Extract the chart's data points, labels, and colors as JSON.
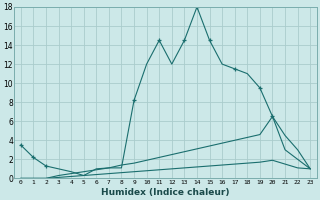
{
  "background_color": "#cce8e8",
  "line_color": "#1a6e6e",
  "grid_color": "#aacccc",
  "xlabel": "Humidex (Indice chaleur)",
  "xlim": [
    -0.5,
    23.5
  ],
  "ylim": [
    0,
    18
  ],
  "yticks": [
    0,
    2,
    4,
    6,
    8,
    10,
    12,
    14,
    16,
    18
  ],
  "xticks": [
    0,
    1,
    2,
    3,
    4,
    5,
    6,
    7,
    8,
    9,
    10,
    11,
    12,
    13,
    14,
    15,
    16,
    17,
    18,
    19,
    20,
    21,
    22,
    23
  ],
  "series": [
    {
      "x": [
        0,
        1,
        2,
        3,
        4,
        5,
        6,
        7,
        8,
        9,
        10,
        11,
        12,
        13,
        14,
        15,
        16,
        17,
        18,
        19,
        20,
        21,
        22,
        23
      ],
      "y": [
        3.5,
        2.2,
        1.3,
        1.0,
        0.7,
        0.3,
        1.0,
        1.1,
        1.1,
        8.2,
        12.0,
        14.5,
        12.0,
        14.5,
        18.0,
        14.5,
        12.0,
        11.5,
        11.0,
        9.5,
        6.5,
        3.0,
        2.0,
        1.0
      ],
      "marker_x": [
        0,
        1,
        2,
        9,
        11,
        13,
        14,
        15,
        17,
        19,
        20
      ],
      "marker_y": [
        3.5,
        2.2,
        1.3,
        8.2,
        14.5,
        14.5,
        18.0,
        14.5,
        11.5,
        9.5,
        6.5
      ]
    },
    {
      "x": [
        0,
        1,
        2,
        3,
        4,
        5,
        6,
        7,
        8,
        9,
        10,
        11,
        12,
        13,
        14,
        15,
        16,
        17,
        18,
        19,
        20,
        21,
        22,
        23
      ],
      "y": [
        0.0,
        0.0,
        0.0,
        0.3,
        0.5,
        0.7,
        0.9,
        1.1,
        1.4,
        1.6,
        1.9,
        2.2,
        2.5,
        2.8,
        3.1,
        3.4,
        3.7,
        4.0,
        4.3,
        4.6,
        6.5,
        4.5,
        3.0,
        1.0
      ]
    },
    {
      "x": [
        0,
        1,
        2,
        3,
        4,
        5,
        6,
        7,
        8,
        9,
        10,
        11,
        12,
        13,
        14,
        15,
        16,
        17,
        18,
        19,
        20,
        21,
        22,
        23
      ],
      "y": [
        0.0,
        0.0,
        0.0,
        0.1,
        0.2,
        0.3,
        0.4,
        0.5,
        0.6,
        0.7,
        0.8,
        0.9,
        1.0,
        1.1,
        1.2,
        1.3,
        1.4,
        1.5,
        1.6,
        1.7,
        1.9,
        1.5,
        1.1,
        1.0
      ]
    }
  ]
}
